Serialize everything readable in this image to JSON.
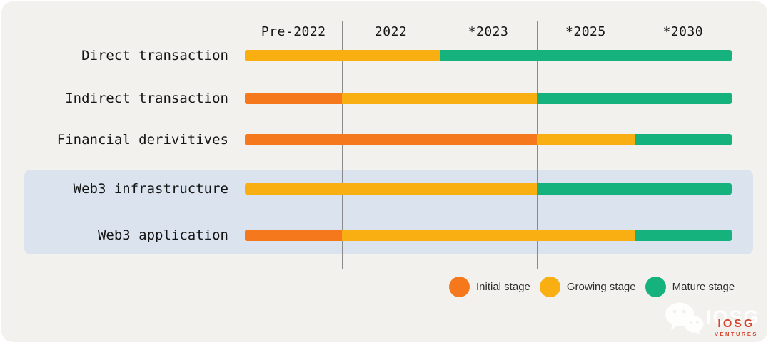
{
  "chart_data": {
    "type": "table",
    "subtype": "timeline-maturity-gantt",
    "periods": [
      "Pre-2022",
      "2022",
      "*2023",
      "*2025",
      "*2030"
    ],
    "rows": [
      {
        "label": "Direct transaction",
        "highlighted": false,
        "stages": [
          "growing",
          "growing",
          "mature",
          "mature",
          "mature"
        ]
      },
      {
        "label": "Indirect transaction",
        "highlighted": false,
        "stages": [
          "initial",
          "growing",
          "growing",
          "mature",
          "mature"
        ]
      },
      {
        "label": "Financial derivitives",
        "highlighted": false,
        "stages": [
          "initial",
          "initial",
          "initial",
          "growing",
          "mature"
        ]
      },
      {
        "label": "Web3 infrastructure",
        "highlighted": true,
        "stages": [
          "growing",
          "growing",
          "growing",
          "mature",
          "mature"
        ]
      },
      {
        "label": "Web3 application",
        "highlighted": true,
        "stages": [
          "initial",
          "growing",
          "growing",
          "growing",
          "mature"
        ]
      }
    ],
    "legend": [
      {
        "stage": "initial",
        "label": "Initial stage"
      },
      {
        "stage": "growing",
        "label": "Growing stage"
      },
      {
        "stage": "mature",
        "label": "Mature stage"
      }
    ],
    "legend_position": "bottom-right",
    "grid": true
  },
  "colors": {
    "initial": "#F5781D",
    "growing": "#F9AF12",
    "mature": "#16B27E",
    "highlight_band": "#DBE4EE",
    "gridline": "#8A8A8A",
    "card_background": "#F2F1EE",
    "text": "#151515",
    "brand_red": "#D6452F"
  },
  "branding": {
    "watermark_text": "IOSG",
    "wordmark": "IOSG",
    "wordmark_sub": "VENTURES"
  }
}
